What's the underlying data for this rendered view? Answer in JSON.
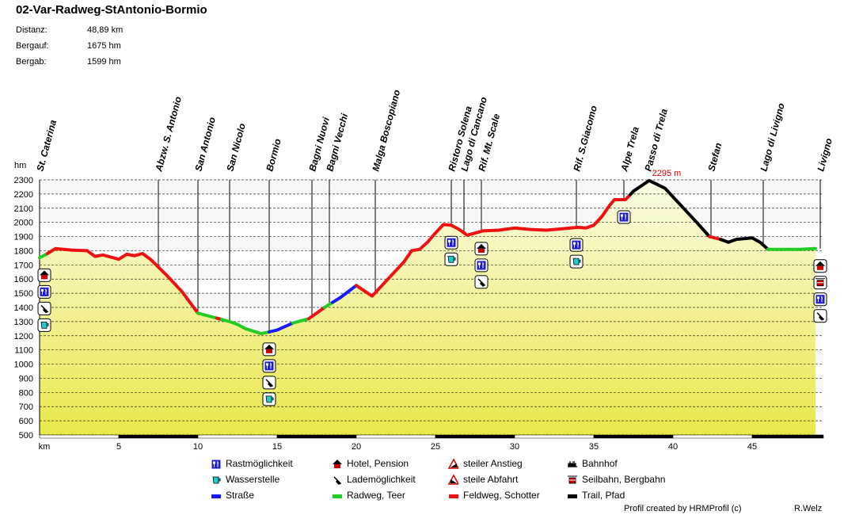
{
  "title": "02-Var-Radweg-StAntonio-Bormio",
  "stats": [
    {
      "label": "Distanz:",
      "value": "48,89 km"
    },
    {
      "label": "Bergauf:",
      "value": "1675 hm"
    },
    {
      "label": "Bergab:",
      "value": "1599 hm"
    }
  ],
  "chart_data": {
    "type": "area",
    "ylabel": "hm",
    "xlabel": "km",
    "xlim": [
      0,
      49.5
    ],
    "ylim": [
      500,
      2300
    ],
    "yticks": [
      500,
      600,
      700,
      800,
      900,
      1000,
      1100,
      1200,
      1300,
      1400,
      1500,
      1600,
      1700,
      1800,
      1900,
      2000,
      2100,
      2200,
      2300
    ],
    "xticks": [
      5,
      10,
      15,
      20,
      25,
      30,
      35,
      40,
      45
    ],
    "max_label": "2295 m",
    "max_point": [
      38.5,
      2295
    ],
    "profile": [
      [
        0,
        1750
      ],
      [
        0.5,
        1780
      ],
      [
        1,
        1815
      ],
      [
        2,
        1805
      ],
      [
        3,
        1800
      ],
      [
        3.5,
        1760
      ],
      [
        4,
        1770
      ],
      [
        4.5,
        1755
      ],
      [
        5,
        1740
      ],
      [
        5.5,
        1775
      ],
      [
        6,
        1765
      ],
      [
        6.5,
        1780
      ],
      [
        7,
        1740
      ],
      [
        8,
        1630
      ],
      [
        9,
        1510
      ],
      [
        10,
        1360
      ],
      [
        11,
        1330
      ],
      [
        12,
        1300
      ],
      [
        12.5,
        1280
      ],
      [
        13,
        1250
      ],
      [
        14,
        1215
      ],
      [
        15,
        1240
      ],
      [
        16,
        1290
      ],
      [
        17,
        1320
      ],
      [
        18,
        1400
      ],
      [
        19,
        1470
      ],
      [
        20,
        1555
      ],
      [
        21,
        1480
      ],
      [
        22,
        1600
      ],
      [
        23,
        1720
      ],
      [
        23.5,
        1800
      ],
      [
        24,
        1810
      ],
      [
        24.5,
        1860
      ],
      [
        25,
        1925
      ],
      [
        25.5,
        1985
      ],
      [
        26,
        1980
      ],
      [
        26.5,
        1950
      ],
      [
        27,
        1910
      ],
      [
        28,
        1940
      ],
      [
        29,
        1945
      ],
      [
        30,
        1960
      ],
      [
        31,
        1950
      ],
      [
        32,
        1945
      ],
      [
        33,
        1955
      ],
      [
        34,
        1965
      ],
      [
        34.5,
        1960
      ],
      [
        35,
        1980
      ],
      [
        35.5,
        2040
      ],
      [
        36,
        2120
      ],
      [
        36.3,
        2160
      ],
      [
        37,
        2160
      ],
      [
        37.5,
        2220
      ],
      [
        38.5,
        2295
      ],
      [
        39.5,
        2240
      ],
      [
        40.5,
        2120
      ],
      [
        41.5,
        2000
      ],
      [
        42.3,
        1900
      ],
      [
        43,
        1880
      ],
      [
        43.5,
        1860
      ],
      [
        44,
        1880
      ],
      [
        45,
        1890
      ],
      [
        45.5,
        1860
      ],
      [
        46,
        1810
      ],
      [
        47,
        1810
      ],
      [
        48,
        1810
      ],
      [
        49,
        1815
      ]
    ],
    "segments": [
      {
        "type": "radweg",
        "from": 0,
        "to": 0.5
      },
      {
        "type": "feldweg",
        "from": 0.5,
        "to": 10
      },
      {
        "type": "radweg",
        "from": 10,
        "to": 11.2
      },
      {
        "type": "feldweg",
        "from": 11.2,
        "to": 11.5
      },
      {
        "type": "radweg",
        "from": 11.5,
        "to": 14.5
      },
      {
        "type": "strasse",
        "from": 14.5,
        "to": 16
      },
      {
        "type": "radweg",
        "from": 16,
        "to": 17
      },
      {
        "type": "feldweg",
        "from": 17,
        "to": 18
      },
      {
        "type": "radweg",
        "from": 18,
        "to": 18.5
      },
      {
        "type": "strasse",
        "from": 18.5,
        "to": 20
      },
      {
        "type": "feldweg",
        "from": 20,
        "to": 37.3
      },
      {
        "type": "trail",
        "from": 37.3,
        "to": 42.3
      },
      {
        "type": "feldweg",
        "from": 42.3,
        "to": 43
      },
      {
        "type": "trail",
        "from": 43,
        "to": 46
      },
      {
        "type": "radweg",
        "from": 46,
        "to": 49
      }
    ],
    "waypoints": [
      {
        "name": "St. Caterina",
        "km": 0,
        "icons": [
          "hotel",
          "rast",
          "lade",
          "wasser"
        ]
      },
      {
        "name": "Abzw. S. Antonio",
        "km": 7.5,
        "icons": []
      },
      {
        "name": "San Antonio",
        "km": 10,
        "icons": []
      },
      {
        "name": "San Nicolo",
        "km": 12,
        "icons": []
      },
      {
        "name": "Bormio",
        "km": 14.5,
        "icons": [
          "hotel",
          "rast",
          "lade",
          "wasser"
        ]
      },
      {
        "name": "Bagni Nuovi",
        "km": 17.2,
        "icons": []
      },
      {
        "name": "Bagni Vecchi",
        "km": 18.3,
        "icons": []
      },
      {
        "name": "Malga Boscopiano",
        "km": 21.2,
        "icons": []
      },
      {
        "name": "Ristoro Solena",
        "km": 26,
        "icons": [
          "rast",
          "wasser"
        ]
      },
      {
        "name": "Lago di Cancano",
        "km": 26.8,
        "icons": []
      },
      {
        "name": "Rif. Mt. Scale",
        "km": 27.9,
        "icons": [
          "hotel",
          "rast",
          "lade"
        ]
      },
      {
        "name": "Rif. S.Giacomo",
        "km": 33.9,
        "icons": [
          "rast",
          "wasser"
        ]
      },
      {
        "name": "Alpe Trela",
        "km": 36.9,
        "icons": [
          "rast"
        ]
      },
      {
        "name": "Passo di Trela",
        "km": 38.4,
        "icons": []
      },
      {
        "name": "Stefan",
        "km": 42.4,
        "icons": []
      },
      {
        "name": "Lago di Livigno",
        "km": 45.7,
        "icons": []
      },
      {
        "name": "Livigno",
        "km": 49.3,
        "icons": [
          "hotel",
          "seilbahn",
          "rast",
          "lade"
        ]
      }
    ]
  },
  "legend": [
    [
      {
        "icon": "rast",
        "label": "Rastmöglichkeit"
      },
      {
        "icon": "hotel",
        "label": "Hotel, Pension"
      },
      {
        "icon": "steil-an",
        "label": "steiler Anstieg"
      },
      {
        "icon": "bahnhof",
        "label": "Bahnhof"
      }
    ],
    [
      {
        "icon": "wasser",
        "label": "Wasserstelle"
      },
      {
        "icon": "lade",
        "label": "Lademöglichkeit"
      },
      {
        "icon": "steil-ab",
        "label": "steile Abfahrt"
      },
      {
        "icon": "seilbahn",
        "label": "Seilbahn, Bergbahn"
      }
    ],
    [
      {
        "icon": "strasse",
        "label": "Straße"
      },
      {
        "icon": "radweg",
        "label": "Radweg, Teer"
      },
      {
        "icon": "feldweg",
        "label": "Feldweg, Schotter"
      },
      {
        "icon": "trail",
        "label": "Trail, Pfad"
      }
    ]
  ],
  "colors": {
    "strasse": "#1a1aff",
    "radweg": "#22cc22",
    "feldweg": "#ee1111",
    "trail": "#000000",
    "rast_bg": "#1f1fcc",
    "wasser": "#22cccc",
    "hotel_roof": "#cc0000"
  },
  "credit": "Profil created by HRMProfil (c)",
  "author": "R.Welz"
}
